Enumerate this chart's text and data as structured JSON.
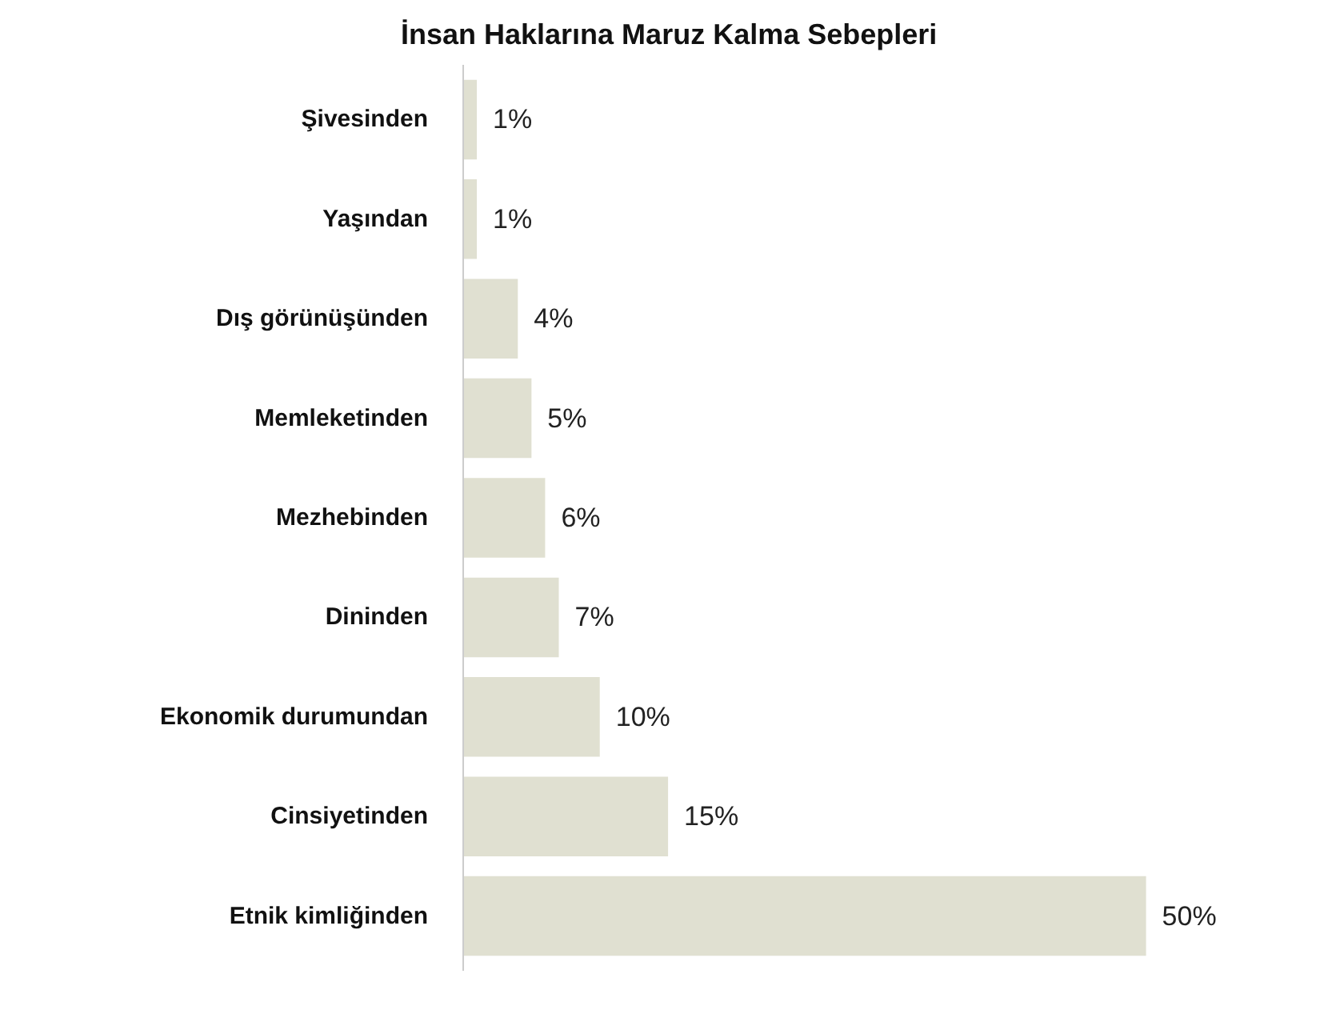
{
  "chart_data": {
    "type": "bar",
    "orientation": "horizontal",
    "title": "İnsan Haklarına Maruz Kalma Sebepleri",
    "categories": [
      "Şivesinden",
      "Yaşından",
      "Dış görünüşünden",
      "Memleketinden",
      "Mezhebinden",
      "Dininden",
      "Ekonomik durumundan",
      "Cinsiyetinden",
      "Etnik kimliğinden"
    ],
    "values": [
      1,
      1,
      4,
      5,
      6,
      7,
      10,
      15,
      50
    ],
    "value_labels": [
      "1%",
      "1%",
      "4%",
      "5%",
      "6%",
      "7%",
      "10%",
      "15%",
      "50%"
    ],
    "color": "#e0e0d1",
    "grid": false
  }
}
